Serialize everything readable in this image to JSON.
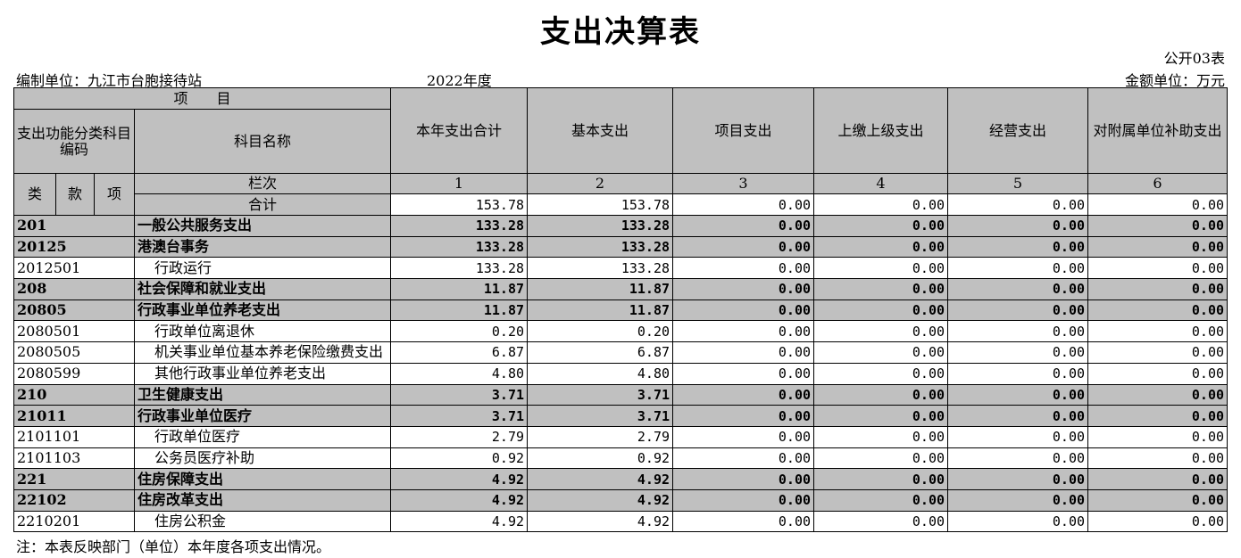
{
  "header": {
    "title": "支出决算表",
    "form_no": "公开03表",
    "unit": "编制单位：九江市台胞接待站",
    "year": "2022年度",
    "currency": "金额单位：万元"
  },
  "table": {
    "header_item": "项　　目",
    "code_header": "支出功能分类科目编码",
    "name_header": "科目名称",
    "columns": [
      "本年支出合计",
      "基本支出",
      "项目支出",
      "上缴上级支出",
      "经营支出",
      "对附属单位补助支出"
    ],
    "column_index_label": "栏次",
    "column_numbers": [
      "1",
      "2",
      "3",
      "4",
      "5",
      "6"
    ],
    "code_parts": [
      "类",
      "款",
      "项"
    ],
    "total_label": "合计",
    "total_values": [
      "153.78",
      "153.78",
      "0.00",
      "0.00",
      "0.00",
      "0.00"
    ],
    "rows": [
      {
        "code": "201",
        "name": "一般公共服务支出",
        "bold": true,
        "values": [
          "133.28",
          "133.28",
          "0.00",
          "0.00",
          "0.00",
          "0.00"
        ]
      },
      {
        "code": "20125",
        "name": "港澳台事务",
        "bold": true,
        "values": [
          "133.28",
          "133.28",
          "0.00",
          "0.00",
          "0.00",
          "0.00"
        ]
      },
      {
        "code": "2012501",
        "name": "行政运行",
        "bold": false,
        "values": [
          "133.28",
          "133.28",
          "0.00",
          "0.00",
          "0.00",
          "0.00"
        ]
      },
      {
        "code": "208",
        "name": "社会保障和就业支出",
        "bold": true,
        "values": [
          "11.87",
          "11.87",
          "0.00",
          "0.00",
          "0.00",
          "0.00"
        ]
      },
      {
        "code": "20805",
        "name": "行政事业单位养老支出",
        "bold": true,
        "values": [
          "11.87",
          "11.87",
          "0.00",
          "0.00",
          "0.00",
          "0.00"
        ]
      },
      {
        "code": "2080501",
        "name": "行政单位离退休",
        "bold": false,
        "values": [
          "0.20",
          "0.20",
          "0.00",
          "0.00",
          "0.00",
          "0.00"
        ]
      },
      {
        "code": "2080505",
        "name": "机关事业单位基本养老保险缴费支出",
        "bold": false,
        "values": [
          "6.87",
          "6.87",
          "0.00",
          "0.00",
          "0.00",
          "0.00"
        ]
      },
      {
        "code": "2080599",
        "name": "其他行政事业单位养老支出",
        "bold": false,
        "values": [
          "4.80",
          "4.80",
          "0.00",
          "0.00",
          "0.00",
          "0.00"
        ]
      },
      {
        "code": "210",
        "name": "卫生健康支出",
        "bold": true,
        "values": [
          "3.71",
          "3.71",
          "0.00",
          "0.00",
          "0.00",
          "0.00"
        ]
      },
      {
        "code": "21011",
        "name": "行政事业单位医疗",
        "bold": true,
        "values": [
          "3.71",
          "3.71",
          "0.00",
          "0.00",
          "0.00",
          "0.00"
        ]
      },
      {
        "code": "2101101",
        "name": "行政单位医疗",
        "bold": false,
        "values": [
          "2.79",
          "2.79",
          "0.00",
          "0.00",
          "0.00",
          "0.00"
        ]
      },
      {
        "code": "2101103",
        "name": "公务员医疗补助",
        "bold": false,
        "values": [
          "0.92",
          "0.92",
          "0.00",
          "0.00",
          "0.00",
          "0.00"
        ]
      },
      {
        "code": "221",
        "name": "住房保障支出",
        "bold": true,
        "values": [
          "4.92",
          "4.92",
          "0.00",
          "0.00",
          "0.00",
          "0.00"
        ]
      },
      {
        "code": "22102",
        "name": "住房改革支出",
        "bold": true,
        "values": [
          "4.92",
          "4.92",
          "0.00",
          "0.00",
          "0.00",
          "0.00"
        ]
      },
      {
        "code": "2210201",
        "name": "住房公积金",
        "bold": false,
        "values": [
          "4.92",
          "4.92",
          "0.00",
          "0.00",
          "0.00",
          "0.00"
        ]
      }
    ]
  },
  "footer": {
    "note": "注：本表反映部门（单位）本年度各项支出情况。"
  }
}
